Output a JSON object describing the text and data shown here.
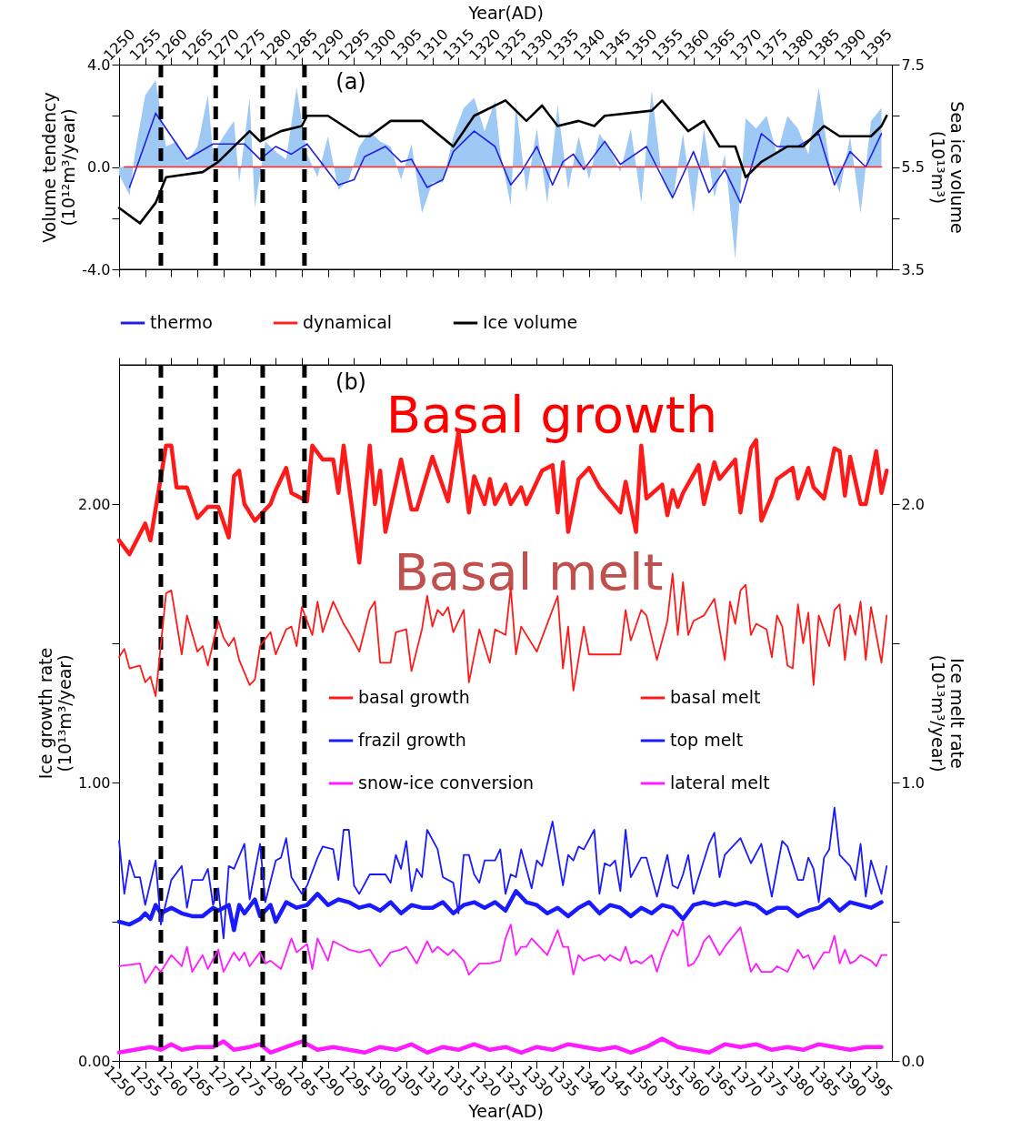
{
  "chart_data": [
    {
      "type": "line",
      "xlabel": "Year(AD)",
      "ylabel": "Volume tendency\n(10¹²m³/year)",
      "y2label": "Sea ice volume\n(10¹³m³)",
      "xlim": [
        1250,
        1398
      ],
      "xticks": [
        1250,
        1255,
        1260,
        1265,
        1270,
        1275,
        1280,
        1285,
        1290,
        1295,
        1300,
        1305,
        1310,
        1315,
        1320,
        1325,
        1330,
        1335,
        1340,
        1345,
        1350,
        1355,
        1360,
        1365,
        1370,
        1375,
        1380,
        1385,
        1390,
        1395
      ],
      "ylim": [
        -4,
        4
      ],
      "yticks": [
        {
          "value": -4,
          "label": "-4.0"
        },
        {
          "value": -2,
          "label": null
        },
        {
          "value": 0,
          "label": "0.0"
        },
        {
          "value": 2,
          "label": null
        },
        {
          "value": 4,
          "label": "4.0"
        }
      ],
      "y2lim": [
        3.5,
        7.5
      ],
      "y2ticks": [
        3.5,
        {
          "value": 4.5,
          "label": null
        },
        5.5,
        {
          "value": 6.5,
          "label": null
        },
        7.5
      ],
      "legend": "bottom",
      "annotations": [
        "(a)"
      ],
      "ref_lines": [
        {
          "axis": "x",
          "value": 1258,
          "color": "#000000",
          "line_style": "dashed"
        },
        {
          "axis": "x",
          "value": 1268.5,
          "color": "#000000",
          "line_style": "dashed"
        },
        {
          "axis": "x",
          "value": 1277.5,
          "color": "#000000",
          "line_style": "dashed"
        },
        {
          "axis": "x",
          "value": 1285.5,
          "color": "#000000",
          "line_style": "dashed"
        }
      ],
      "series": [
        {
          "type": "area",
          "color": "#9fc9f5",
          "x": [
            1250,
            1252,
            1253,
            1255,
            1257,
            1259,
            1261,
            1263,
            1265,
            1267,
            1268,
            1270,
            1272,
            1273,
            1275,
            1276,
            1278,
            1280,
            1282,
            1284,
            1286,
            1288,
            1290,
            1292,
            1294,
            1296,
            1298,
            1300,
            1302,
            1304,
            1306,
            1308,
            1310,
            1312,
            1314,
            1316,
            1318,
            1320,
            1322,
            1323,
            1325,
            1326,
            1328,
            1330,
            1332,
            1334,
            1336,
            1338,
            1340,
            1342,
            1344,
            1346,
            1348,
            1350,
            1352,
            1354,
            1356,
            1358,
            1360,
            1362,
            1364,
            1366,
            1368,
            1370,
            1372,
            1374,
            1376,
            1378,
            1380,
            1382,
            1384,
            1386,
            1388,
            1390,
            1392,
            1394,
            1396
          ],
          "values": [
            -0.3,
            -1.1,
            0.5,
            2.8,
            3.4,
            0.8,
            1.0,
            0.2,
            0.8,
            2.8,
            0.5,
            1.2,
            1.8,
            -0.6,
            2.7,
            -1.6,
            1.0,
            0.6,
            0.3,
            3.1,
            0.5,
            -0.4,
            1.2,
            -0.9,
            -0.5,
            0.8,
            1.4,
            1.0,
            0.8,
            -0.5,
            0.9,
            -1.8,
            -0.6,
            -0.6,
            1.2,
            2.3,
            2.7,
            1.4,
            2.6,
            0.6,
            -1.5,
            2.5,
            -1.0,
            1.5,
            -1.4,
            2.4,
            -0.9,
            1.2,
            -0.5,
            1.3,
            0.7,
            -0.2,
            1.5,
            -1.4,
            3.0,
            -0.5,
            -1.3,
            1.3,
            -1.8,
            1.5,
            -1.2,
            0.5,
            -3.6,
            1.9,
            1.5,
            2.0,
            0.5,
            2.0,
            1.5,
            0.5,
            3.1,
            0.2,
            -1.0,
            1.2,
            -1.8,
            1.8,
            2.3
          ]
        },
        {
          "name": "thermo",
          "color": "#2020e0",
          "x": [
            1252,
            1257,
            1263,
            1268,
            1274,
            1277,
            1280,
            1283,
            1286,
            1292,
            1295,
            1297,
            1301,
            1304,
            1306,
            1309,
            1312,
            1314,
            1318,
            1322,
            1325,
            1327,
            1330,
            1333,
            1335,
            1337,
            1339,
            1343,
            1346,
            1351,
            1356,
            1360,
            1363,
            1366,
            1369,
            1373,
            1376,
            1380,
            1384,
            1387,
            1390,
            1393,
            1396
          ],
          "values": [
            -0.8,
            2.1,
            0.3,
            0.9,
            0.9,
            0.3,
            0.8,
            0.5,
            0.9,
            -0.7,
            -0.5,
            0.4,
            0.8,
            0.2,
            0.3,
            -0.8,
            -0.5,
            0.6,
            1.4,
            0.8,
            -0.7,
            -0.2,
            0.8,
            -0.7,
            0.2,
            0.5,
            -0.1,
            1.0,
            0.1,
            0.8,
            -1.2,
            0.6,
            -1.0,
            -0.1,
            -1.4,
            1.3,
            0.8,
            0.8,
            1.3,
            -0.7,
            0.6,
            0.0,
            1.3
          ]
        },
        {
          "name": "dynamical",
          "color": "#ff2020",
          "x": [
            1251,
            1396
          ],
          "values": [
            0,
            0
          ]
        },
        {
          "name": "Ice volume",
          "color": "#000000",
          "axis": "y2",
          "x": [
            1250,
            1254,
            1257,
            1259,
            1266,
            1269,
            1275,
            1277,
            1281,
            1285,
            1286,
            1290,
            1296,
            1298,
            1302,
            1308,
            1314,
            1318,
            1324,
            1328,
            1331,
            1334,
            1338,
            1341,
            1343,
            1352,
            1354,
            1359,
            1362,
            1365,
            1368,
            1370,
            1373,
            1378,
            1381,
            1385,
            1388,
            1392,
            1394,
            1396,
            1397
          ],
          "values": [
            4.7,
            4.4,
            4.8,
            5.3,
            5.4,
            5.6,
            6.2,
            6.0,
            6.2,
            6.3,
            6.5,
            6.5,
            6.1,
            6.1,
            6.4,
            6.4,
            5.9,
            6.5,
            6.8,
            6.4,
            6.7,
            6.3,
            6.4,
            6.3,
            6.5,
            6.6,
            6.8,
            6.2,
            6.4,
            5.9,
            5.9,
            5.3,
            5.6,
            5.9,
            5.9,
            6.3,
            6.1,
            6.1,
            6.1,
            6.3,
            6.5
          ]
        }
      ]
    },
    {
      "type": "line",
      "xlabel": "Year(AD)",
      "ylabel": "Ice growth rate\n(10¹³m³/year)",
      "y2label": "Ice melt rate\n(10¹³m³/year)",
      "xlim": [
        1250,
        1398
      ],
      "xticks": [
        1250,
        1255,
        1260,
        1265,
        1270,
        1275,
        1280,
        1285,
        1290,
        1295,
        1300,
        1305,
        1310,
        1315,
        1320,
        1325,
        1330,
        1335,
        1340,
        1345,
        1350,
        1355,
        1360,
        1365,
        1370,
        1375,
        1380,
        1385,
        1390,
        1395
      ],
      "ylim": [
        0,
        2.5
      ],
      "yticks": [
        {
          "value": 0,
          "label": "0.00"
        },
        {
          "value": 0.5,
          "label": null
        },
        {
          "value": 1,
          "label": "1.00"
        },
        {
          "value": 1.5,
          "label": null
        },
        {
          "value": 2,
          "label": "2.00"
        }
      ],
      "y2lim": [
        0,
        2.5
      ],
      "y2ticks": [
        {
          "value": 0,
          "label": "0.0"
        },
        {
          "value": 0.5,
          "label": null
        },
        {
          "value": 1,
          "label": "1.0"
        },
        {
          "value": 1.5,
          "label": null
        },
        {
          "value": 2,
          "label": "2.0"
        }
      ],
      "legend": "right",
      "annotations": [
        "(b)",
        "Basal growth",
        "Basal melt"
      ],
      "ref_lines": [
        {
          "axis": "x",
          "value": 1258,
          "color": "#000000",
          "line_style": "dashed"
        },
        {
          "axis": "x",
          "value": 1268.5,
          "color": "#000000",
          "line_style": "dashed"
        },
        {
          "axis": "x",
          "value": 1277.5,
          "color": "#000000",
          "line_style": "dashed"
        },
        {
          "axis": "x",
          "value": 1285.5,
          "color": "#000000",
          "line_style": "dashed"
        }
      ],
      "series": [
        {
          "name": "basal growth",
          "color": "#ff1a1a",
          "x": [
            1250,
            1252,
            1255,
            1256,
            1259,
            1260,
            1261,
            1263,
            1265,
            1267,
            1269,
            1271,
            1272,
            1273,
            1274,
            1276,
            1279,
            1280,
            1282,
            1283,
            1286,
            1287,
            1289,
            1291,
            1292,
            1293,
            1294,
            1296,
            1298,
            1299,
            1300,
            1301,
            1304,
            1306,
            1307,
            1310,
            1313,
            1315,
            1317,
            1318,
            1320,
            1321,
            1322,
            1324,
            1325,
            1327,
            1328,
            1331,
            1333,
            1334,
            1335,
            1336,
            1338,
            1340,
            1342,
            1346,
            1347,
            1349,
            1350,
            1351,
            1354,
            1355,
            1356,
            1357,
            1358,
            1361,
            1362,
            1364,
            1365,
            1368,
            1369,
            1371,
            1372,
            1373,
            1375,
            1376,
            1379,
            1380,
            1382,
            1383,
            1385,
            1387,
            1388,
            1389,
            1390,
            1392,
            1393,
            1395,
            1396,
            1397
          ],
          "values": [
            1.87,
            1.82,
            1.93,
            1.87,
            2.21,
            2.21,
            2.06,
            2.06,
            1.95,
            1.99,
            1.99,
            1.88,
            2.1,
            2.12,
            2.0,
            1.94,
            2.0,
            2.05,
            2.13,
            2.04,
            2.01,
            2.21,
            2.16,
            2.16,
            2.04,
            2.21,
            2.07,
            1.79,
            2.21,
            2.0,
            2.12,
            1.9,
            2.16,
            1.98,
            1.98,
            2.17,
            2.01,
            2.26,
            1.97,
            2.1,
            2.0,
            2.09,
            2.0,
            2.07,
            2.0,
            2.06,
            2.0,
            2.12,
            2.14,
            1.97,
            2.15,
            1.9,
            2.09,
            2.13,
            2.06,
            1.97,
            2.08,
            1.9,
            2.21,
            2.02,
            2.07,
            1.96,
            2.05,
            1.99,
            2.04,
            2.14,
            2.0,
            2.15,
            2.09,
            2.16,
            1.97,
            2.2,
            2.23,
            1.94,
            2.03,
            2.09,
            2.13,
            2.02,
            2.13,
            2.06,
            2.02,
            2.2,
            2.19,
            2.03,
            2.17,
            2.0,
            2.0,
            2.19,
            2.04,
            2.12
          ]
        },
        {
          "name": "basal melt",
          "color": "#ff1a1a",
          "axis": "y2",
          "x": [
            1250,
            1251,
            1252,
            1254,
            1255,
            1256,
            1257,
            1259,
            1260,
            1262,
            1263,
            1265,
            1266,
            1267,
            1269,
            1270,
            1271,
            1272,
            1273,
            1275,
            1276,
            1277,
            1279,
            1280,
            1282,
            1283,
            1284,
            1285,
            1287,
            1288,
            1289,
            1291,
            1293,
            1294,
            1296,
            1298,
            1299,
            1300,
            1302,
            1303,
            1305,
            1306,
            1308,
            1309,
            1310,
            1311,
            1312,
            1313,
            1314,
            1316,
            1317,
            1319,
            1321,
            1322,
            1324,
            1325,
            1326,
            1327,
            1330,
            1334,
            1335,
            1336,
            1337,
            1339,
            1340,
            1346,
            1347,
            1348,
            1350,
            1351,
            1353,
            1355,
            1356,
            1357,
            1358,
            1359,
            1360,
            1362,
            1364,
            1366,
            1367,
            1368,
            1369,
            1370,
            1371,
            1372,
            1374,
            1375,
            1376,
            1377,
            1378,
            1379,
            1380,
            1381,
            1382,
            1383,
            1384,
            1386,
            1387,
            1388,
            1389,
            1390,
            1391,
            1392,
            1393,
            1394,
            1396,
            1397
          ],
          "values": [
            1.45,
            1.48,
            1.41,
            1.42,
            1.36,
            1.38,
            1.31,
            1.68,
            1.69,
            1.46,
            1.6,
            1.47,
            1.49,
            1.42,
            1.58,
            1.52,
            1.49,
            1.52,
            1.44,
            1.35,
            1.37,
            1.49,
            1.54,
            1.46,
            1.55,
            1.56,
            1.49,
            1.63,
            1.53,
            1.65,
            1.54,
            1.65,
            1.57,
            1.54,
            1.47,
            1.62,
            1.65,
            1.43,
            1.43,
            1.54,
            1.55,
            1.4,
            1.55,
            1.67,
            1.56,
            1.62,
            1.6,
            1.63,
            1.54,
            1.62,
            1.36,
            1.55,
            1.43,
            1.55,
            1.53,
            1.7,
            1.46,
            1.56,
            1.47,
            1.67,
            1.41,
            1.56,
            1.33,
            1.56,
            1.46,
            1.46,
            1.62,
            1.51,
            1.62,
            1.6,
            1.44,
            1.58,
            1.75,
            1.53,
            1.72,
            1.53,
            1.58,
            1.6,
            1.66,
            1.44,
            1.65,
            1.57,
            1.69,
            1.71,
            1.53,
            1.57,
            1.55,
            1.45,
            1.6,
            1.56,
            1.42,
            1.41,
            1.64,
            1.5,
            1.61,
            1.35,
            1.6,
            1.49,
            1.62,
            1.64,
            1.44,
            1.6,
            1.53,
            1.65,
            1.44,
            1.63,
            1.43,
            1.6
          ]
        },
        {
          "name": "frazil growth",
          "color": "#1a1aff",
          "x": [
            1250,
            1252,
            1254,
            1255,
            1256,
            1257,
            1258,
            1260,
            1262,
            1264,
            1266,
            1268,
            1269,
            1271,
            1272,
            1273,
            1274,
            1276,
            1277,
            1279,
            1280,
            1282,
            1284,
            1286,
            1288,
            1290,
            1292,
            1294,
            1296,
            1298,
            1300,
            1302,
            1304,
            1306,
            1308,
            1310,
            1312,
            1314,
            1316,
            1318,
            1320,
            1322,
            1324,
            1326,
            1328,
            1330,
            1332,
            1334,
            1336,
            1338,
            1340,
            1342,
            1344,
            1346,
            1348,
            1350,
            1352,
            1354,
            1356,
            1358,
            1360,
            1362,
            1364,
            1366,
            1368,
            1370,
            1372,
            1374,
            1376,
            1378,
            1380,
            1382,
            1384,
            1386,
            1388,
            1390,
            1392,
            1394,
            1396
          ],
          "values": [
            0.5,
            0.49,
            0.51,
            0.53,
            0.51,
            0.56,
            0.53,
            0.55,
            0.53,
            0.52,
            0.52,
            0.55,
            0.54,
            0.56,
            0.47,
            0.56,
            0.53,
            0.58,
            0.52,
            0.56,
            0.5,
            0.57,
            0.55,
            0.56,
            0.6,
            0.56,
            0.58,
            0.57,
            0.55,
            0.56,
            0.54,
            0.57,
            0.53,
            0.56,
            0.55,
            0.55,
            0.57,
            0.53,
            0.56,
            0.57,
            0.55,
            0.57,
            0.54,
            0.61,
            0.57,
            0.56,
            0.53,
            0.55,
            0.52,
            0.55,
            0.57,
            0.53,
            0.56,
            0.55,
            0.52,
            0.55,
            0.53,
            0.56,
            0.55,
            0.51,
            0.56,
            0.57,
            0.56,
            0.57,
            0.56,
            0.57,
            0.56,
            0.53,
            0.55,
            0.55,
            0.52,
            0.54,
            0.55,
            0.58,
            0.54,
            0.57,
            0.56,
            0.55,
            0.57
          ]
        },
        {
          "name": "top melt",
          "color": "#1a1aff",
          "axis": "y2",
          "x": [
            1250,
            1251,
            1252,
            1253,
            1254,
            1255,
            1257,
            1258,
            1260,
            1262,
            1263,
            1264,
            1266,
            1267,
            1268,
            1269,
            1270,
            1271,
            1272,
            1274,
            1275,
            1277,
            1278,
            1280,
            1281,
            1282,
            1283,
            1285,
            1286,
            1288,
            1289,
            1291,
            1292,
            1293,
            1294,
            1295,
            1296,
            1298,
            1301,
            1302,
            1303,
            1304,
            1305,
            1306,
            1307,
            1308,
            1309,
            1311,
            1312,
            1314,
            1315,
            1316,
            1317,
            1318,
            1319,
            1320,
            1322,
            1323,
            1324,
            1325,
            1326,
            1327,
            1329,
            1330,
            1331,
            1333,
            1335,
            1336,
            1337,
            1338,
            1339,
            1341,
            1342,
            1343,
            1344,
            1345,
            1346,
            1347,
            1348,
            1350,
            1351,
            1353,
            1355,
            1356,
            1357,
            1358,
            1359,
            1360,
            1361,
            1363,
            1364,
            1365,
            1366,
            1367,
            1369,
            1371,
            1373,
            1375,
            1377,
            1378,
            1380,
            1381,
            1382,
            1383,
            1384,
            1385,
            1386,
            1387,
            1388,
            1390,
            1391,
            1392,
            1393,
            1394,
            1396,
            1397
          ],
          "values": [
            0.79,
            0.6,
            0.72,
            0.66,
            0.66,
            0.56,
            0.72,
            0.49,
            0.65,
            0.7,
            0.55,
            0.65,
            0.65,
            0.69,
            0.56,
            0.62,
            0.44,
            0.7,
            0.69,
            0.78,
            0.58,
            0.78,
            0.57,
            0.72,
            0.73,
            0.8,
            0.66,
            0.6,
            0.63,
            0.73,
            0.77,
            0.76,
            0.65,
            0.83,
            0.83,
            0.63,
            0.6,
            0.67,
            0.67,
            0.64,
            0.74,
            0.69,
            0.79,
            0.61,
            0.69,
            0.66,
            0.83,
            0.76,
            0.66,
            0.64,
            0.53,
            0.74,
            0.74,
            0.67,
            0.64,
            0.72,
            0.72,
            0.76,
            0.6,
            0.67,
            0.66,
            0.76,
            0.62,
            0.72,
            0.7,
            0.86,
            0.63,
            0.74,
            0.72,
            0.77,
            0.76,
            0.83,
            0.6,
            0.71,
            0.7,
            0.72,
            0.61,
            0.83,
            0.66,
            0.73,
            0.73,
            0.59,
            0.74,
            0.63,
            0.62,
            0.67,
            0.74,
            0.6,
            0.66,
            0.78,
            0.82,
            0.66,
            0.74,
            0.76,
            0.8,
            0.71,
            0.78,
            0.59,
            0.79,
            0.77,
            0.65,
            0.65,
            0.73,
            0.69,
            0.57,
            0.73,
            0.76,
            0.91,
            0.74,
            0.7,
            0.65,
            0.78,
            0.59,
            0.72,
            0.6,
            0.7
          ]
        },
        {
          "name": "snow-ice conversion",
          "color": "#ff1aff",
          "x": [
            1250,
            1253,
            1256,
            1258,
            1260,
            1262,
            1265,
            1268,
            1270,
            1272,
            1275,
            1277,
            1279,
            1282,
            1285,
            1288,
            1291,
            1294,
            1297,
            1300,
            1303,
            1306,
            1309,
            1312,
            1315,
            1318,
            1321,
            1324,
            1327,
            1330,
            1333,
            1336,
            1339,
            1342,
            1345,
            1348,
            1351,
            1354,
            1357,
            1360,
            1363,
            1366,
            1369,
            1372,
            1375,
            1378,
            1381,
            1384,
            1387,
            1390,
            1393,
            1396
          ],
          "values": [
            0.03,
            0.04,
            0.05,
            0.04,
            0.06,
            0.04,
            0.05,
            0.05,
            0.07,
            0.04,
            0.05,
            0.06,
            0.03,
            0.05,
            0.07,
            0.04,
            0.05,
            0.04,
            0.03,
            0.05,
            0.04,
            0.06,
            0.03,
            0.05,
            0.04,
            0.06,
            0.04,
            0.05,
            0.03,
            0.05,
            0.04,
            0.06,
            0.05,
            0.04,
            0.05,
            0.03,
            0.05,
            0.08,
            0.05,
            0.04,
            0.03,
            0.06,
            0.05,
            0.06,
            0.04,
            0.05,
            0.04,
            0.06,
            0.05,
            0.04,
            0.05,
            0.05
          ]
        },
        {
          "name": "lateral melt",
          "color": "#ff1aff",
          "axis": "y2",
          "x": [
            1250,
            1254,
            1255,
            1257,
            1258,
            1260,
            1262,
            1263,
            1264,
            1266,
            1267,
            1269,
            1270,
            1272,
            1273,
            1274,
            1275,
            1277,
            1278,
            1279,
            1281,
            1283,
            1284,
            1286,
            1287,
            1288,
            1290,
            1291,
            1293,
            1294,
            1296,
            1298,
            1299,
            1300,
            1302,
            1304,
            1305,
            1306,
            1307,
            1309,
            1310,
            1311,
            1313,
            1314,
            1315,
            1316,
            1317,
            1319,
            1321,
            1323,
            1324,
            1325,
            1326,
            1327,
            1328,
            1329,
            1332,
            1334,
            1335,
            1336,
            1337,
            1338,
            1339,
            1340,
            1342,
            1343,
            1344,
            1346,
            1347,
            1348,
            1349,
            1350,
            1352,
            1353,
            1354,
            1356,
            1357,
            1358,
            1359,
            1360,
            1361,
            1362,
            1363,
            1365,
            1366,
            1369,
            1371,
            1372,
            1373,
            1375,
            1376,
            1378,
            1380,
            1381,
            1382,
            1383,
            1385,
            1386,
            1387,
            1388,
            1389,
            1390,
            1391,
            1392,
            1394,
            1395,
            1396,
            1397
          ],
          "values": [
            0.34,
            0.35,
            0.28,
            0.34,
            0.32,
            0.38,
            0.34,
            0.41,
            0.32,
            0.38,
            0.33,
            0.4,
            0.32,
            0.39,
            0.36,
            0.39,
            0.34,
            0.39,
            0.35,
            0.36,
            0.33,
            0.44,
            0.39,
            0.42,
            0.33,
            0.44,
            0.36,
            0.43,
            0.41,
            0.4,
            0.39,
            0.4,
            0.37,
            0.34,
            0.39,
            0.4,
            0.41,
            0.38,
            0.35,
            0.43,
            0.39,
            0.41,
            0.38,
            0.4,
            0.38,
            0.36,
            0.31,
            0.35,
            0.35,
            0.36,
            0.44,
            0.49,
            0.38,
            0.41,
            0.41,
            0.44,
            0.38,
            0.47,
            0.41,
            0.41,
            0.31,
            0.38,
            0.36,
            0.37,
            0.38,
            0.36,
            0.38,
            0.36,
            0.41,
            0.35,
            0.36,
            0.35,
            0.38,
            0.32,
            0.38,
            0.47,
            0.45,
            0.5,
            0.34,
            0.35,
            0.38,
            0.43,
            0.45,
            0.38,
            0.41,
            0.48,
            0.32,
            0.35,
            0.32,
            0.32,
            0.34,
            0.32,
            0.4,
            0.37,
            0.38,
            0.33,
            0.39,
            0.39,
            0.45,
            0.35,
            0.4,
            0.35,
            0.36,
            0.38,
            0.36,
            0.34,
            0.38,
            0.38
          ]
        }
      ]
    }
  ]
}
